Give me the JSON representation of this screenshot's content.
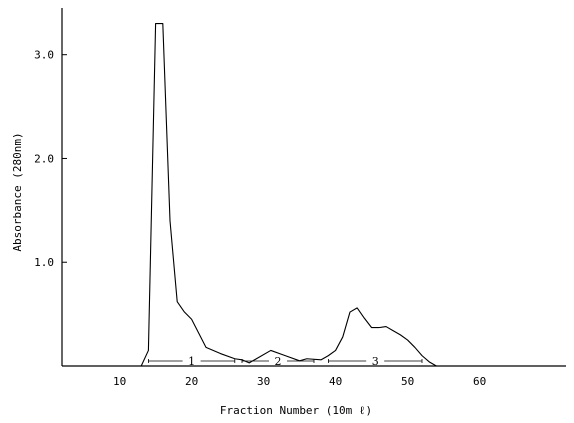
{
  "chart_data": {
    "type": "line",
    "title": "",
    "xlabel": "Fraction Number (10m ℓ)",
    "ylabel": "Absorbance (280nm)",
    "xlim": [
      2,
      72
    ],
    "ylim": [
      0,
      3.45
    ],
    "xticks": [
      {
        "value": 10,
        "label": "10"
      },
      {
        "value": 20,
        "label": "20"
      },
      {
        "value": 30,
        "label": "30"
      },
      {
        "value": 40,
        "label": "40"
      },
      {
        "value": 50,
        "label": "50"
      },
      {
        "value": 60,
        "label": "60"
      }
    ],
    "yticks": [
      {
        "value": 1.0,
        "label": "1.0"
      },
      {
        "value": 2.0,
        "label": "2.0"
      },
      {
        "value": 3.0,
        "label": "3.0"
      }
    ],
    "grid": false,
    "legend": "none",
    "series": [
      {
        "x": [
          13,
          14,
          15,
          16,
          17,
          18,
          19,
          20,
          22,
          24,
          26,
          27,
          28,
          29,
          31,
          33,
          35,
          36,
          38,
          39,
          40,
          41,
          42,
          43,
          44,
          45,
          46,
          47,
          48,
          49,
          50,
          51,
          52,
          53,
          54
        ],
        "y": [
          0,
          0.15,
          3.3,
          3.3,
          1.4,
          0.62,
          0.52,
          0.45,
          0.18,
          0.12,
          0.07,
          0.06,
          0.03,
          0.07,
          0.15,
          0.1,
          0.05,
          0.07,
          0.06,
          0.1,
          0.15,
          0.28,
          0.52,
          0.56,
          0.46,
          0.37,
          0.37,
          0.38,
          0.34,
          0.3,
          0.25,
          0.18,
          0.1,
          0.04,
          0
        ]
      }
    ],
    "pools": [
      {
        "label": "1",
        "x_start": 14,
        "x_end": 26
      },
      {
        "label": "2",
        "x_start": 27,
        "x_end": 37
      },
      {
        "label": "3",
        "x_start": 39,
        "x_end": 52
      }
    ]
  }
}
